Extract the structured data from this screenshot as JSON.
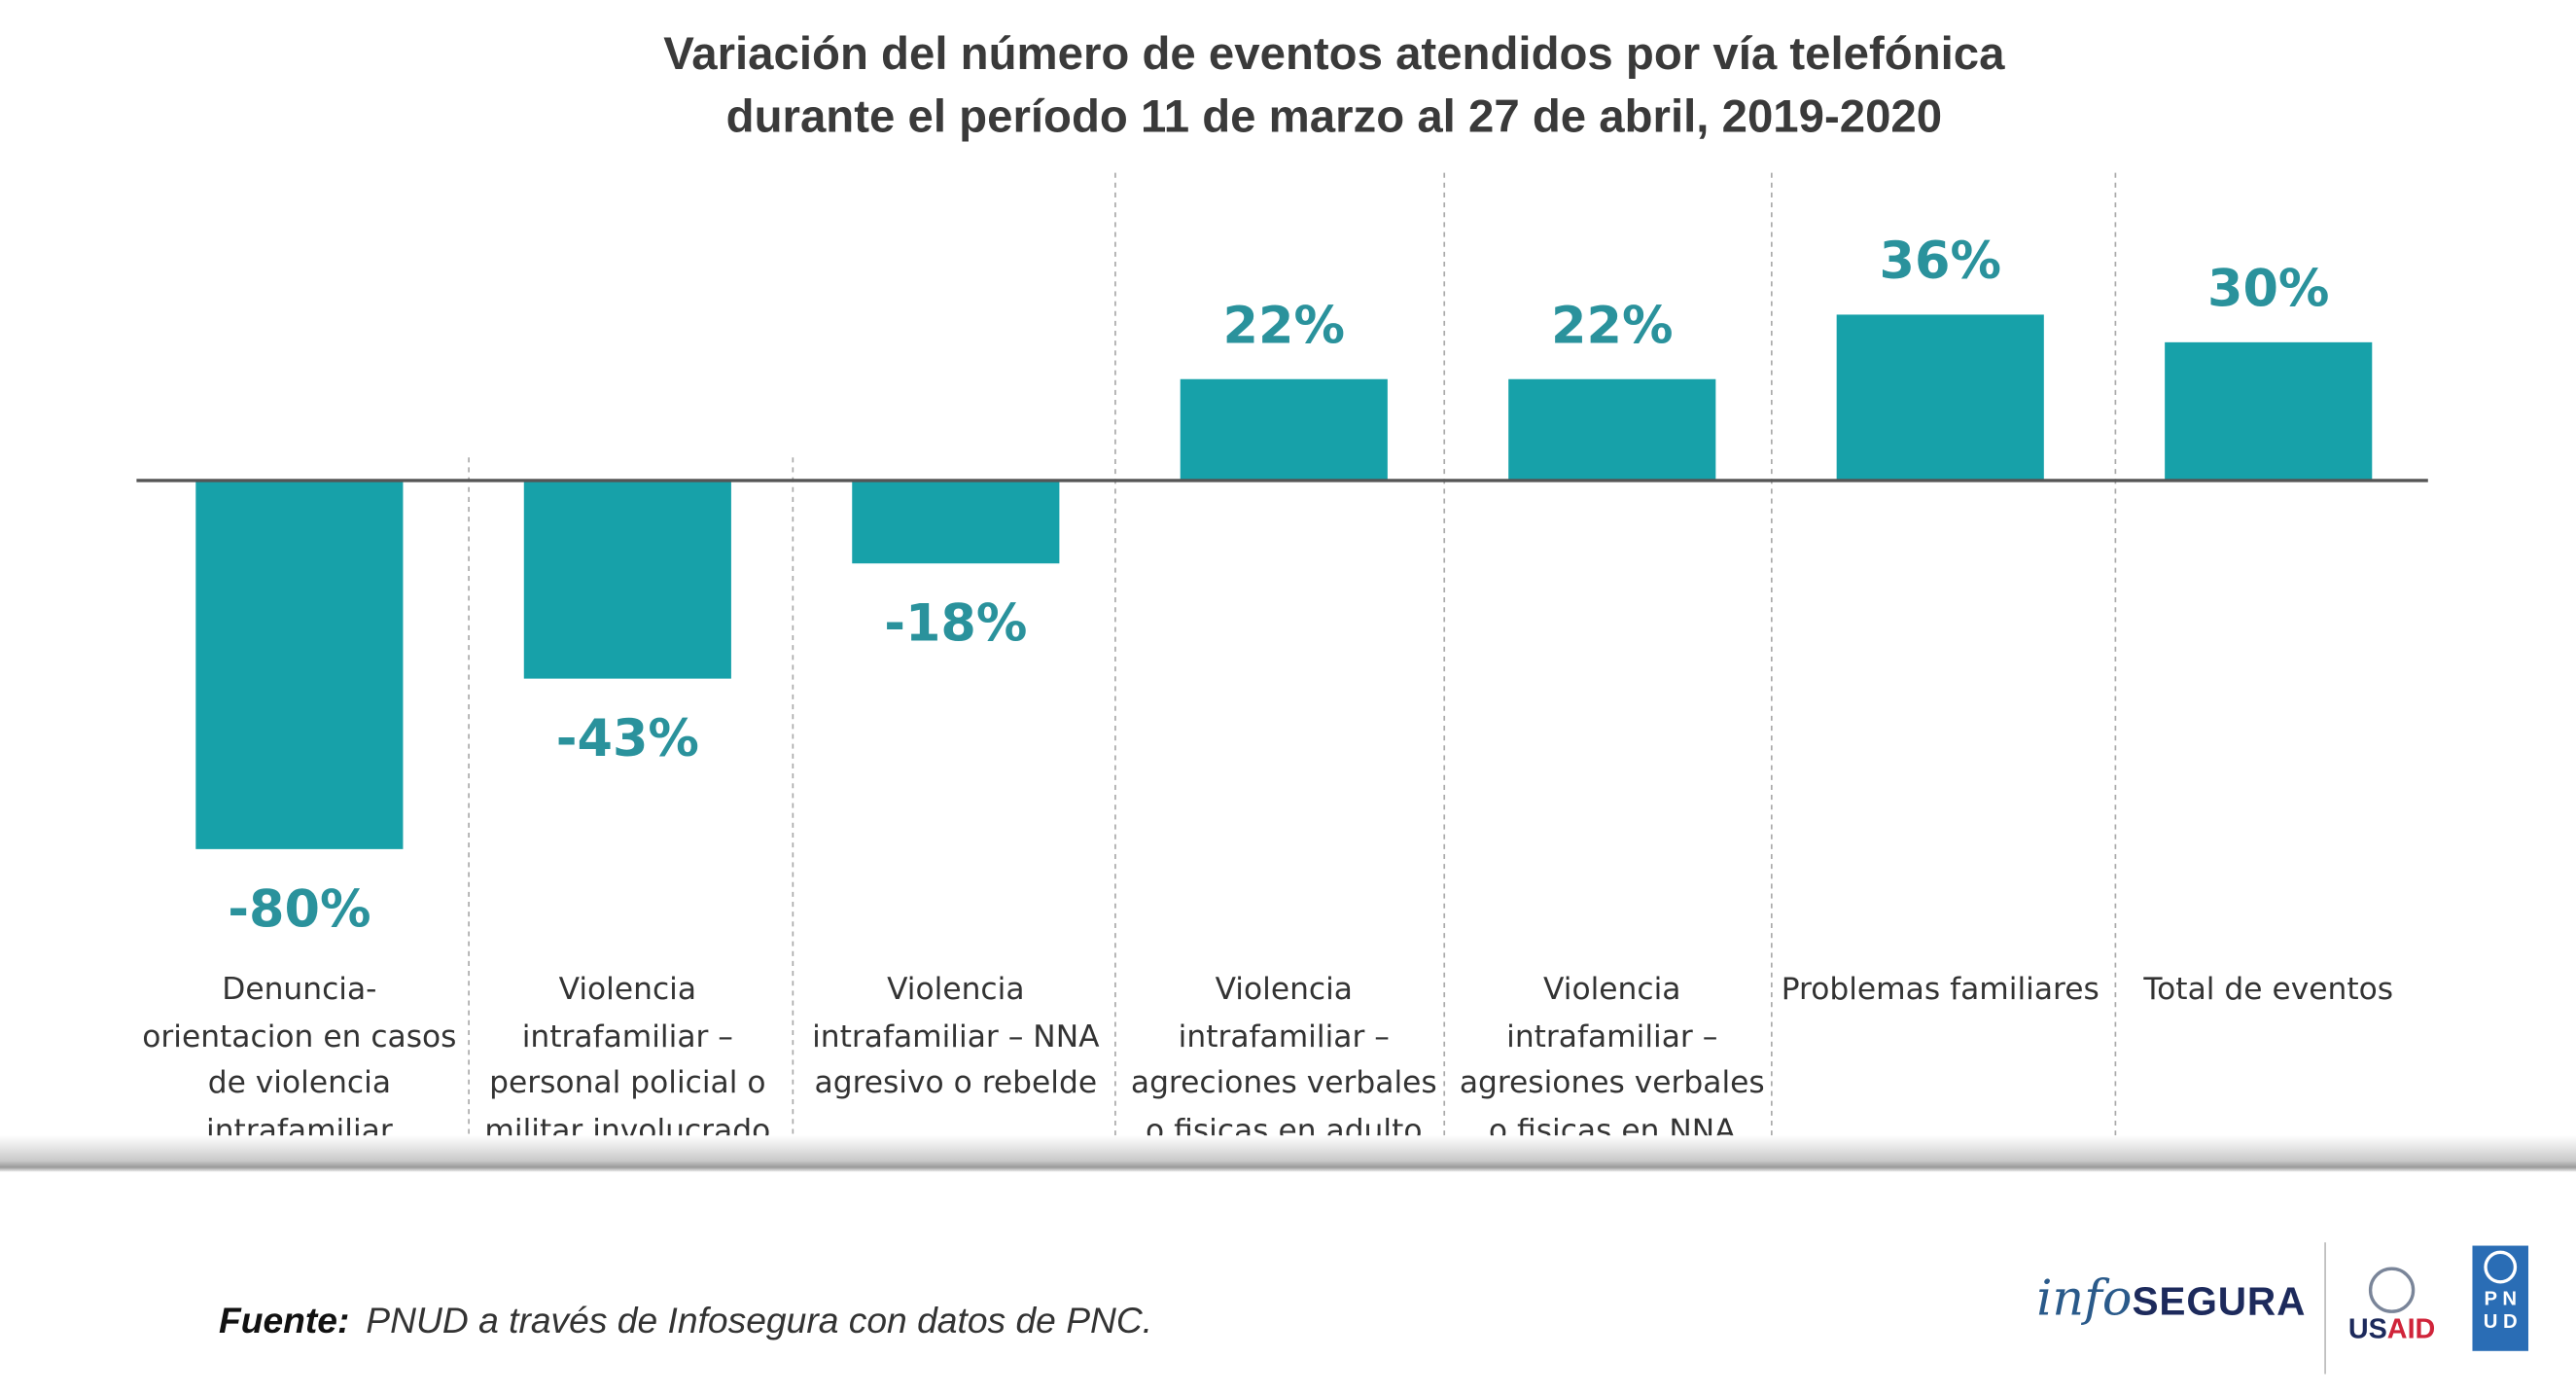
{
  "chart_data": {
    "type": "bar",
    "title": "Variación del número de eventos atendidos por vía telefónica durante el período 11 de marzo al 27 de abril, 2019-2020",
    "title_lines": [
      "Variación del número de eventos atendidos por vía telefónica",
      "durante el período 11 de marzo al 27 de abril, 2019-2020"
    ],
    "categories": [
      [
        "Denuncia-",
        "orientacion en casos",
        "de violencia",
        "intrafamiliar"
      ],
      [
        "Violencia",
        "intrafamiliar –",
        "personal policial o",
        "militar involucrado"
      ],
      [
        "Violencia",
        "intrafamiliar – NNA",
        "agresivo o rebelde"
      ],
      [
        "Violencia",
        "intrafamiliar –",
        "agreciones verbales",
        "o fisicas en adulto"
      ],
      [
        "Violencia",
        "intrafamiliar –",
        "agresiones verbales",
        "o fisicas en NNA"
      ],
      [
        "Problemas familiares"
      ],
      [
        "Total de eventos"
      ]
    ],
    "values": [
      -80,
      -43,
      -18,
      22,
      22,
      36,
      30
    ],
    "value_labels": [
      "-80%",
      "-43%",
      "-18%",
      "22%",
      "22%",
      "36%",
      "30%"
    ],
    "unit": "%",
    "xlabel": "",
    "ylabel": "",
    "ylim": [
      -80,
      36
    ],
    "grid": false,
    "bar_color": "#17a1a9",
    "label_color": "#2a929c"
  },
  "footer": {
    "source_label": "Fuente:",
    "source_text": "PNUD a través de Infosegura con datos de PNC."
  },
  "logos": {
    "infosegura_info": "info",
    "infosegura_segura": "SEGURA",
    "usaid_us": "US",
    "usaid_aid": "AID",
    "pnud_letters": [
      "P",
      "N",
      "U",
      "D"
    ]
  }
}
